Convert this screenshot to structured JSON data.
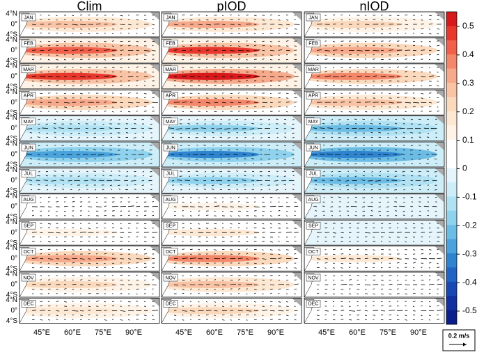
{
  "columns": [
    "Clim",
    "pIOD",
    "nIOD"
  ],
  "months": [
    "JAN",
    "FEB",
    "MAR",
    "APR",
    "MAY",
    "JUN",
    "JUL",
    "AUG",
    "SEP",
    "OCT",
    "NOV",
    "DEC"
  ],
  "lat_labels": [
    "4°N",
    "0°",
    "4°S"
  ],
  "lon_labels": [
    "45°E",
    "60°E",
    "75°E",
    "90°E"
  ],
  "colorbar": {
    "ticks": [
      0.5,
      0.4,
      0.3,
      0.2,
      0.1,
      0,
      -0.1,
      -0.2,
      -0.3,
      -0.4,
      -0.5
    ],
    "colors": [
      "#d7191c",
      "#e8372c",
      "#f0604a",
      "#f4866a",
      "#f7a98b",
      "#f9c3a6",
      "#fbd9bd",
      "#fde8d4",
      "#fef3e6",
      "#ffffff",
      "#ffffff",
      "#e6f5fb",
      "#cdeef8",
      "#b0e2f4",
      "#8fd2ee",
      "#6cbde6",
      "#4aa3dc",
      "#2f84d0",
      "#2065c4",
      "#1848b4",
      "#1230a0",
      "#0b1e8c"
    ]
  },
  "vector_key": "0.2 m/s"
}
